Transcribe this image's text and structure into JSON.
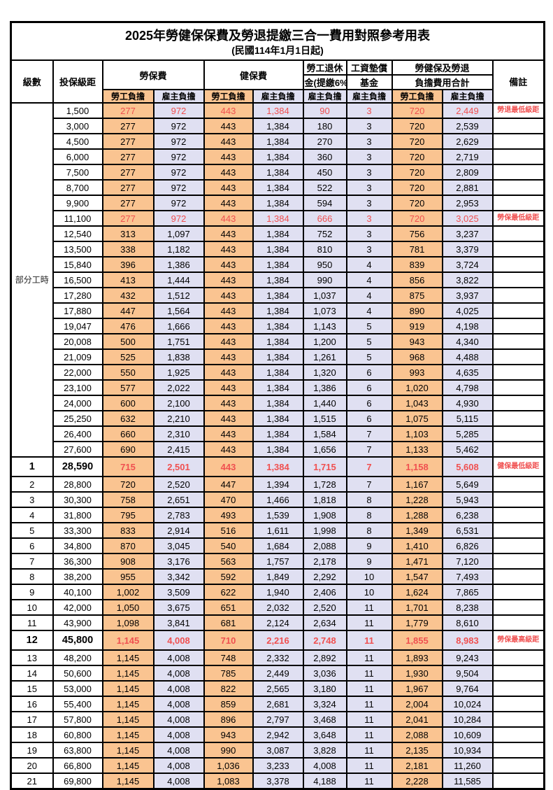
{
  "title": "2025年勞健保保費及勞退提繳三合一費用對照參考用表",
  "subtitle": "(民國114年1月1日起)",
  "colors": {
    "employee_column_bg": "#FAC491",
    "employer_column_bg": "#E0E0F2",
    "highlight_text": "#F05050",
    "border": "#000000"
  },
  "header": {
    "level": "級數",
    "bracket": "投保級距",
    "labor_insurance": "勞保費",
    "health_insurance": "健保費",
    "pension_line1": "勞工退休",
    "pension_line2": "金(提繳6%)",
    "wage_fund_line1": "工資墊償",
    "wage_fund_line2": "基金",
    "total_line1": "勞健保及勞退",
    "total_line2": "負擔費用合計",
    "remark": "備註",
    "employee_share": "勞工負擔",
    "employer_share": "雇主負擔"
  },
  "part_time": {
    "label": "部分工時",
    "rowspan": 23
  },
  "rows": [
    {
      "level": "",
      "bracket": "1,500",
      "values": [
        "277",
        "972",
        "443",
        "1,384",
        "90",
        "3",
        "720",
        "2,449"
      ],
      "note": "勞退最低級距",
      "red": true,
      "em": false
    },
    {
      "level": "",
      "bracket": "3,000",
      "values": [
        "277",
        "972",
        "443",
        "1,384",
        "180",
        "3",
        "720",
        "2,539"
      ],
      "note": "",
      "red": false,
      "em": false
    },
    {
      "level": "",
      "bracket": "4,500",
      "values": [
        "277",
        "972",
        "443",
        "1,384",
        "270",
        "3",
        "720",
        "2,629"
      ],
      "note": "",
      "red": false,
      "em": false
    },
    {
      "level": "",
      "bracket": "6,000",
      "values": [
        "277",
        "972",
        "443",
        "1,384",
        "360",
        "3",
        "720",
        "2,719"
      ],
      "note": "",
      "red": false,
      "em": false
    },
    {
      "level": "",
      "bracket": "7,500",
      "values": [
        "277",
        "972",
        "443",
        "1,384",
        "450",
        "3",
        "720",
        "2,809"
      ],
      "note": "",
      "red": false,
      "em": false
    },
    {
      "level": "",
      "bracket": "8,700",
      "values": [
        "277",
        "972",
        "443",
        "1,384",
        "522",
        "3",
        "720",
        "2,881"
      ],
      "note": "",
      "red": false,
      "em": false
    },
    {
      "level": "",
      "bracket": "9,900",
      "values": [
        "277",
        "972",
        "443",
        "1,384",
        "594",
        "3",
        "720",
        "2,953"
      ],
      "note": "",
      "red": false,
      "em": false
    },
    {
      "level": "",
      "bracket": "11,100",
      "values": [
        "277",
        "972",
        "443",
        "1,384",
        "666",
        "3",
        "720",
        "3,025"
      ],
      "note": "勞保最低級距",
      "red": true,
      "em": false
    },
    {
      "level": "",
      "bracket": "12,540",
      "values": [
        "313",
        "1,097",
        "443",
        "1,384",
        "752",
        "3",
        "756",
        "3,237"
      ],
      "note": "",
      "red": false,
      "em": false
    },
    {
      "level": "",
      "bracket": "13,500",
      "values": [
        "338",
        "1,182",
        "443",
        "1,384",
        "810",
        "3",
        "781",
        "3,379"
      ],
      "note": "",
      "red": false,
      "em": false
    },
    {
      "level": "",
      "bracket": "15,840",
      "values": [
        "396",
        "1,386",
        "443",
        "1,384",
        "950",
        "4",
        "839",
        "3,724"
      ],
      "note": "",
      "red": false,
      "em": false
    },
    {
      "level": "",
      "bracket": "16,500",
      "values": [
        "413",
        "1,444",
        "443",
        "1,384",
        "990",
        "4",
        "856",
        "3,822"
      ],
      "note": "",
      "red": false,
      "em": false
    },
    {
      "level": "",
      "bracket": "17,280",
      "values": [
        "432",
        "1,512",
        "443",
        "1,384",
        "1,037",
        "4",
        "875",
        "3,937"
      ],
      "note": "",
      "red": false,
      "em": false
    },
    {
      "level": "",
      "bracket": "17,880",
      "values": [
        "447",
        "1,564",
        "443",
        "1,384",
        "1,073",
        "4",
        "890",
        "4,025"
      ],
      "note": "",
      "red": false,
      "em": false
    },
    {
      "level": "",
      "bracket": "19,047",
      "values": [
        "476",
        "1,666",
        "443",
        "1,384",
        "1,143",
        "5",
        "919",
        "4,198"
      ],
      "note": "",
      "red": false,
      "em": false
    },
    {
      "level": "",
      "bracket": "20,008",
      "values": [
        "500",
        "1,751",
        "443",
        "1,384",
        "1,200",
        "5",
        "943",
        "4,340"
      ],
      "note": "",
      "red": false,
      "em": false
    },
    {
      "level": "",
      "bracket": "21,009",
      "values": [
        "525",
        "1,838",
        "443",
        "1,384",
        "1,261",
        "5",
        "968",
        "4,488"
      ],
      "note": "",
      "red": false,
      "em": false
    },
    {
      "level": "",
      "bracket": "22,000",
      "values": [
        "550",
        "1,925",
        "443",
        "1,384",
        "1,320",
        "6",
        "993",
        "4,635"
      ],
      "note": "",
      "red": false,
      "em": false
    },
    {
      "level": "",
      "bracket": "23,100",
      "values": [
        "577",
        "2,022",
        "443",
        "1,384",
        "1,386",
        "6",
        "1,020",
        "4,798"
      ],
      "note": "",
      "red": false,
      "em": false
    },
    {
      "level": "",
      "bracket": "24,000",
      "values": [
        "600",
        "2,100",
        "443",
        "1,384",
        "1,440",
        "6",
        "1,043",
        "4,930"
      ],
      "note": "",
      "red": false,
      "em": false
    },
    {
      "level": "",
      "bracket": "25,250",
      "values": [
        "632",
        "2,210",
        "443",
        "1,384",
        "1,515",
        "6",
        "1,075",
        "5,115"
      ],
      "note": "",
      "red": false,
      "em": false
    },
    {
      "level": "",
      "bracket": "26,400",
      "values": [
        "660",
        "2,310",
        "443",
        "1,384",
        "1,584",
        "7",
        "1,103",
        "5,285"
      ],
      "note": "",
      "red": false,
      "em": false
    },
    {
      "level": "",
      "bracket": "27,600",
      "values": [
        "690",
        "2,415",
        "443",
        "1,384",
        "1,656",
        "7",
        "1,133",
        "5,462"
      ],
      "note": "",
      "red": false,
      "em": false
    },
    {
      "level": "1",
      "bracket": "28,590",
      "values": [
        "715",
        "2,501",
        "443",
        "1,384",
        "1,715",
        "7",
        "1,158",
        "5,608"
      ],
      "note": "健保最低級距",
      "red": true,
      "em": true
    },
    {
      "level": "2",
      "bracket": "28,800",
      "values": [
        "720",
        "2,520",
        "447",
        "1,394",
        "1,728",
        "7",
        "1,167",
        "5,649"
      ],
      "note": "",
      "red": false,
      "em": false
    },
    {
      "level": "3",
      "bracket": "30,300",
      "values": [
        "758",
        "2,651",
        "470",
        "1,466",
        "1,818",
        "8",
        "1,228",
        "5,943"
      ],
      "note": "",
      "red": false,
      "em": false
    },
    {
      "level": "4",
      "bracket": "31,800",
      "values": [
        "795",
        "2,783",
        "493",
        "1,539",
        "1,908",
        "8",
        "1,288",
        "6,238"
      ],
      "note": "",
      "red": false,
      "em": false
    },
    {
      "level": "5",
      "bracket": "33,300",
      "values": [
        "833",
        "2,914",
        "516",
        "1,611",
        "1,998",
        "8",
        "1,349",
        "6,531"
      ],
      "note": "",
      "red": false,
      "em": false
    },
    {
      "level": "6",
      "bracket": "34,800",
      "values": [
        "870",
        "3,045",
        "540",
        "1,684",
        "2,088",
        "9",
        "1,410",
        "6,826"
      ],
      "note": "",
      "red": false,
      "em": false
    },
    {
      "level": "7",
      "bracket": "36,300",
      "values": [
        "908",
        "3,176",
        "563",
        "1,757",
        "2,178",
        "9",
        "1,471",
        "7,120"
      ],
      "note": "",
      "red": false,
      "em": false
    },
    {
      "level": "8",
      "bracket": "38,200",
      "values": [
        "955",
        "3,342",
        "592",
        "1,849",
        "2,292",
        "10",
        "1,547",
        "7,493"
      ],
      "note": "",
      "red": false,
      "em": false
    },
    {
      "level": "9",
      "bracket": "40,100",
      "values": [
        "1,002",
        "3,509",
        "622",
        "1,940",
        "2,406",
        "10",
        "1,624",
        "7,865"
      ],
      "note": "",
      "red": false,
      "em": false
    },
    {
      "level": "10",
      "bracket": "42,000",
      "values": [
        "1,050",
        "3,675",
        "651",
        "2,032",
        "2,520",
        "11",
        "1,701",
        "8,238"
      ],
      "note": "",
      "red": false,
      "em": false
    },
    {
      "level": "11",
      "bracket": "43,900",
      "values": [
        "1,098",
        "3,841",
        "681",
        "2,124",
        "2,634",
        "11",
        "1,779",
        "8,610"
      ],
      "note": "",
      "red": false,
      "em": false
    },
    {
      "level": "12",
      "bracket": "45,800",
      "values": [
        "1,145",
        "4,008",
        "710",
        "2,216",
        "2,748",
        "11",
        "1,855",
        "8,983"
      ],
      "note": "勞保最高級距",
      "red": true,
      "em": true
    },
    {
      "level": "13",
      "bracket": "48,200",
      "values": [
        "1,145",
        "4,008",
        "748",
        "2,332",
        "2,892",
        "11",
        "1,893",
        "9,243"
      ],
      "note": "",
      "red": false,
      "em": false
    },
    {
      "level": "14",
      "bracket": "50,600",
      "values": [
        "1,145",
        "4,008",
        "785",
        "2,449",
        "3,036",
        "11",
        "1,930",
        "9,504"
      ],
      "note": "",
      "red": false,
      "em": false
    },
    {
      "level": "15",
      "bracket": "53,000",
      "values": [
        "1,145",
        "4,008",
        "822",
        "2,565",
        "3,180",
        "11",
        "1,967",
        "9,764"
      ],
      "note": "",
      "red": false,
      "em": false
    },
    {
      "level": "16",
      "bracket": "55,400",
      "values": [
        "1,145",
        "4,008",
        "859",
        "2,681",
        "3,324",
        "11",
        "2,004",
        "10,024"
      ],
      "note": "",
      "red": false,
      "em": false
    },
    {
      "level": "17",
      "bracket": "57,800",
      "values": [
        "1,145",
        "4,008",
        "896",
        "2,797",
        "3,468",
        "11",
        "2,041",
        "10,284"
      ],
      "note": "",
      "red": false,
      "em": false
    },
    {
      "level": "18",
      "bracket": "60,800",
      "values": [
        "1,145",
        "4,008",
        "943",
        "2,942",
        "3,648",
        "11",
        "2,088",
        "10,609"
      ],
      "note": "",
      "red": false,
      "em": false
    },
    {
      "level": "19",
      "bracket": "63,800",
      "values": [
        "1,145",
        "4,008",
        "990",
        "3,087",
        "3,828",
        "11",
        "2,135",
        "10,934"
      ],
      "note": "",
      "red": false,
      "em": false
    },
    {
      "level": "20",
      "bracket": "66,800",
      "values": [
        "1,145",
        "4,008",
        "1,036",
        "3,233",
        "4,008",
        "11",
        "2,181",
        "11,260"
      ],
      "note": "",
      "red": false,
      "em": false
    },
    {
      "level": "21",
      "bracket": "69,800",
      "values": [
        "1,145",
        "4,008",
        "1,083",
        "3,378",
        "4,188",
        "11",
        "2,228",
        "11,585"
      ],
      "note": "",
      "red": false,
      "em": false
    }
  ]
}
